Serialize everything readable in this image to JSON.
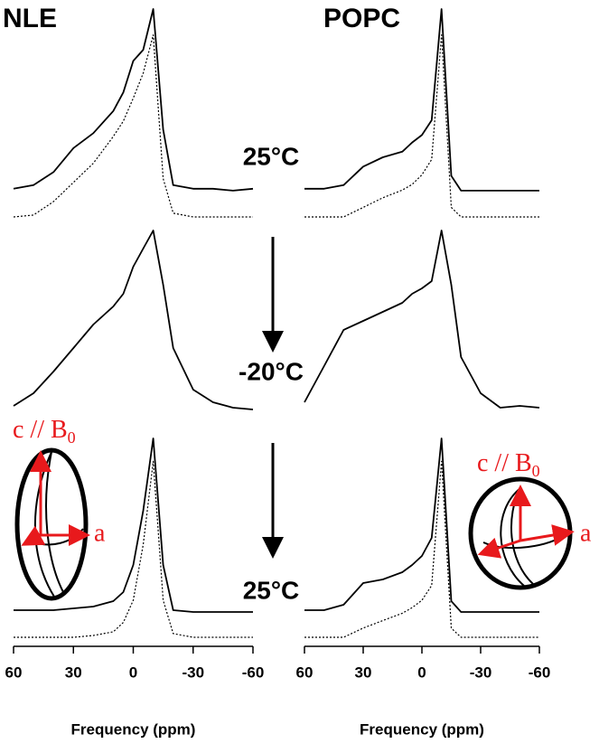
{
  "chart_data": [
    {
      "type": "line",
      "title": "NLE",
      "xlabel": "Frequency (ppm)",
      "x": [
        60,
        50,
        40,
        30,
        20,
        10,
        5,
        0,
        -5,
        -10,
        -15,
        -20,
        -30,
        -40,
        -50,
        -60
      ],
      "xlim": [
        60,
        -60
      ],
      "xticks": [
        60,
        30,
        0,
        -30,
        -60
      ],
      "ylim": [
        0,
        1
      ],
      "series": [
        {
          "color": "#000000",
          "style": "solid",
          "values": [
            0.03,
            0.05,
            0.12,
            0.25,
            0.33,
            0.45,
            0.55,
            0.72,
            0.78,
            1.0,
            0.35,
            0.05,
            0.03,
            0.03,
            0.02,
            0.03
          ]
        },
        {
          "color": "#000000",
          "style": "dotted",
          "values": [
            0,
            0.01,
            0.08,
            0.18,
            0.28,
            0.42,
            0.5,
            0.62,
            0.75,
            0.95,
            0.2,
            0.02,
            0,
            0,
            0,
            0
          ]
        },
        {
          "color": "#000000",
          "style": "solid",
          "values": [
            0.03,
            0.1,
            0.22,
            0.35,
            0.48,
            0.58,
            0.65,
            0.8,
            0.9,
            1.0,
            0.7,
            0.35,
            0.12,
            0.05,
            0.02,
            0.01
          ]
        },
        {
          "color": "#000000",
          "style": "solid",
          "values": [
            0.05,
            0.05,
            0.05,
            0.06,
            0.07,
            0.1,
            0.15,
            0.3,
            0.6,
            1.0,
            0.3,
            0.05,
            0.04,
            0.04,
            0.04,
            0.04
          ]
        },
        {
          "color": "#000000",
          "style": "dotted",
          "values": [
            0,
            0,
            0,
            0,
            0.01,
            0.03,
            0.08,
            0.2,
            0.5,
            0.95,
            0.2,
            0.02,
            0,
            0,
            0,
            0
          ]
        }
      ]
    },
    {
      "type": "line",
      "title": "POPC",
      "xlabel": "Frequency (ppm)",
      "x": [
        60,
        50,
        40,
        30,
        20,
        10,
        5,
        0,
        -5,
        -10,
        -15,
        -20,
        -30,
        -40,
        -50,
        -60
      ],
      "xlim": [
        60,
        -60
      ],
      "xticks": [
        60,
        30,
        0,
        -30,
        -60
      ],
      "ylim": [
        0,
        1
      ],
      "series": [
        {
          "color": "#000000",
          "style": "solid",
          "values": [
            0.03,
            0.03,
            0.05,
            0.15,
            0.2,
            0.23,
            0.28,
            0.32,
            0.4,
            1.0,
            0.1,
            0.02,
            0.02,
            0.02,
            0.02,
            0.02
          ]
        },
        {
          "color": "#000000",
          "style": "dotted",
          "values": [
            0,
            0,
            0,
            0.05,
            0.1,
            0.14,
            0.17,
            0.22,
            0.3,
            0.95,
            0.05,
            0,
            0,
            0,
            0,
            0
          ]
        },
        {
          "color": "#000000",
          "style": "solid",
          "values": [
            0.05,
            0.25,
            0.45,
            0.5,
            0.55,
            0.6,
            0.65,
            0.68,
            0.72,
            1.0,
            0.7,
            0.3,
            0.1,
            0.02,
            0.03,
            0.02
          ]
        },
        {
          "color": "#000000",
          "style": "solid",
          "values": [
            0.05,
            0.05,
            0.08,
            0.2,
            0.22,
            0.26,
            0.3,
            0.35,
            0.45,
            1.0,
            0.1,
            0.04,
            0.04,
            0.04,
            0.04,
            0.04
          ]
        },
        {
          "color": "#000000",
          "style": "dotted",
          "values": [
            0,
            0,
            0,
            0.05,
            0.09,
            0.13,
            0.16,
            0.2,
            0.28,
            0.95,
            0.05,
            0,
            0,
            0,
            0,
            0
          ]
        }
      ]
    }
  ],
  "temperatures": [
    "25°C",
    "-20°C",
    "25°C"
  ],
  "insets": [
    {
      "c_label": "c // B",
      "subscript": "0",
      "a_label": "a"
    },
    {
      "c_label": "c // B",
      "subscript": "0",
      "a_label": "a"
    }
  ]
}
